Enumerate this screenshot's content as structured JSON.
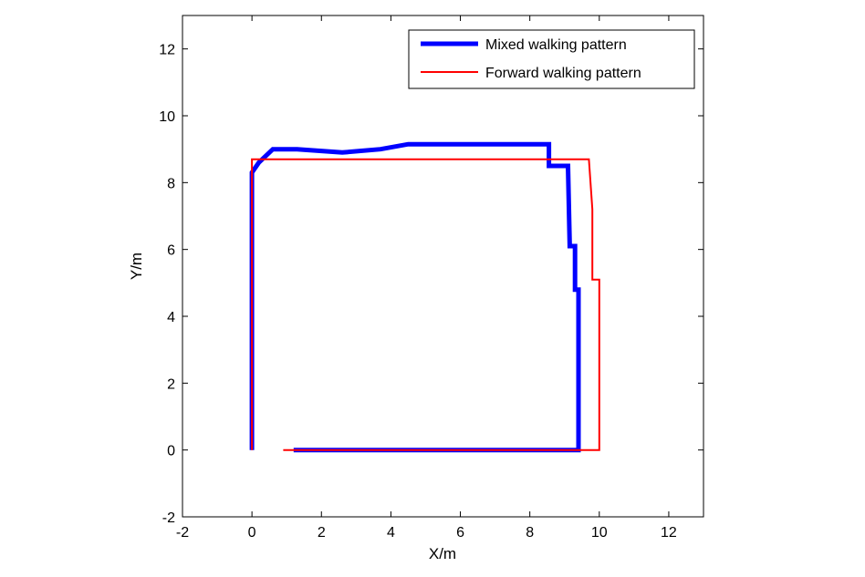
{
  "chart_data": {
    "type": "line",
    "title": "",
    "xlabel": "X/m",
    "ylabel": "Y/m",
    "xlim": [
      -2,
      13
    ],
    "ylim": [
      -2,
      13
    ],
    "xticks": [
      -2,
      0,
      2,
      4,
      6,
      8,
      10,
      12
    ],
    "yticks": [
      -2,
      0,
      2,
      4,
      6,
      8,
      10,
      12
    ],
    "grid": false,
    "legend_position": "top-right",
    "series": [
      {
        "name": "Mixed walking pattern",
        "color": "#0000ff",
        "style": "thick",
        "points": [
          [
            0.0,
            0.0
          ],
          [
            0.0,
            8.3
          ],
          [
            0.2,
            8.6
          ],
          [
            0.6,
            9.0
          ],
          [
            1.3,
            9.0
          ],
          [
            2.6,
            8.9
          ],
          [
            3.7,
            9.0
          ],
          [
            4.5,
            9.15
          ],
          [
            6.0,
            9.15
          ],
          [
            8.55,
            9.15
          ],
          [
            8.55,
            8.5
          ],
          [
            9.1,
            8.5
          ],
          [
            9.15,
            6.1
          ],
          [
            9.3,
            6.1
          ],
          [
            9.3,
            4.8
          ],
          [
            9.4,
            4.8
          ],
          [
            9.4,
            0.0
          ],
          [
            1.2,
            0.0
          ]
        ]
      },
      {
        "name": "Forward walking pattern",
        "color": "#ff0000",
        "style": "thin",
        "points": [
          [
            0.0,
            0.0
          ],
          [
            0.0,
            8.7
          ],
          [
            9.7,
            8.7
          ],
          [
            9.8,
            7.2
          ],
          [
            9.8,
            5.1
          ],
          [
            10.0,
            5.1
          ],
          [
            10.0,
            0.0
          ],
          [
            0.9,
            0.0
          ]
        ]
      }
    ]
  }
}
